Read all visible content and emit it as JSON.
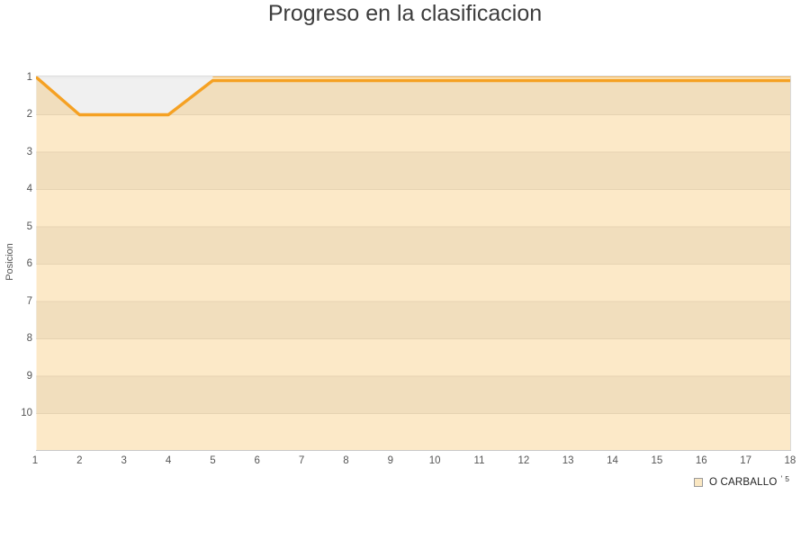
{
  "title": "Progreso en la clasificacion",
  "y_axis": {
    "label": "Posicion",
    "ticks": [
      "1",
      "2",
      "3",
      "4",
      "5",
      "6",
      "7",
      "8",
      "9",
      "10"
    ]
  },
  "x_axis": {
    "ticks": [
      "1",
      "2",
      "3",
      "4",
      "5",
      "6",
      "7",
      "8",
      "9",
      "10",
      "11",
      "12",
      "13",
      "14",
      "15",
      "16",
      "17",
      "18"
    ]
  },
  "legend": {
    "label": "O CARBALLO",
    "mark": "'",
    "annotation": "5"
  },
  "colors": {
    "line": "#f5a123",
    "area_fill": "rgba(245,166,35,0.25)",
    "gap_fill": "#fbe9c6",
    "band_gray": "#f0f0f0",
    "band_white": "#ffffff",
    "gridline": "#e2e2e2",
    "border": "#d9d9d9",
    "border_bottom": "#c9c9c9",
    "title_text": "#3d3d3d",
    "tick_text": "#555555",
    "legend_text": "#222222",
    "legend_swatch_fill": "#fae7c2",
    "legend_swatch_border": "#9b9b9b"
  },
  "chart_data": {
    "type": "area",
    "title": "Progreso en la clasificacion",
    "xlabel": "",
    "ylabel": "Posicion",
    "x": [
      1,
      2,
      3,
      4,
      5,
      6,
      7,
      8,
      9,
      10,
      11,
      12,
      13,
      14,
      15,
      16,
      17,
      18
    ],
    "series": [
      {
        "name": "O CARBALLO",
        "values": [
          1,
          2,
          2,
          2,
          1,
          1,
          1,
          1,
          1,
          1,
          1,
          1,
          1,
          1,
          1,
          1,
          1,
          1
        ]
      }
    ],
    "ylim": [
      1,
      11
    ],
    "y_inverted": true,
    "y_ticks_shown": [
      1,
      2,
      3,
      4,
      5,
      6,
      7,
      8,
      9,
      10
    ],
    "grid": "horizontal",
    "background_bands": "alternating gray/white per position",
    "legend_position": "bottom-right"
  }
}
